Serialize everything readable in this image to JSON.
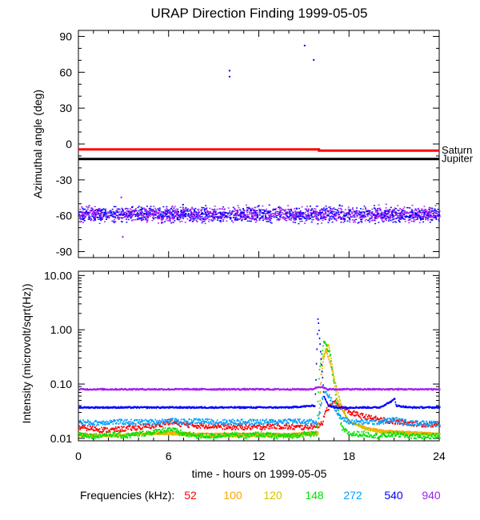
{
  "title": "URAP Direction Finding  1999-05-05",
  "xlabel": "time - hours on 1999-05-05",
  "legend_label": "Frequencies (kHz):",
  "chart_data": [
    {
      "type": "scatter",
      "title": "URAP Direction Finding  1999-05-05",
      "ylabel": "Azimuthal angle (deg)",
      "xlim": [
        0,
        24
      ],
      "ylim": [
        -95,
        95
      ],
      "x_ticks": [
        0,
        6,
        12,
        18,
        24
      ],
      "y_ticks": [
        -90,
        -60,
        -30,
        0,
        30,
        60,
        90
      ],
      "reference_lines": [
        {
          "name": "Saturn",
          "color": "#ff0000",
          "points": [
            [
              0,
              -4.5
            ],
            [
              16,
              -4.5
            ],
            [
              16,
              -5.5
            ],
            [
              24,
              -5.5
            ]
          ]
        },
        {
          "name": "Jupiter",
          "color": "#000000",
          "points": [
            [
              0,
              -12.5
            ],
            [
              24,
              -12.5
            ]
          ]
        }
      ],
      "scatter_band": {
        "x_range": [
          0,
          24
        ],
        "y_center": -58.5,
        "y_spread": 7,
        "colors": [
          "#0000ff",
          "#a020f0"
        ]
      },
      "outlier_points": [
        {
          "x": 10,
          "y": 62,
          "color": "#0000ff"
        },
        {
          "x": 10,
          "y": 57,
          "color": "#0000ff"
        },
        {
          "x": 15,
          "y": 83,
          "color": "#0000ff"
        },
        {
          "x": 15.6,
          "y": 71,
          "color": "#0000ff"
        },
        {
          "x": 2.9,
          "y": -77,
          "color": "#a020f0"
        },
        {
          "x": 2.8,
          "y": -44,
          "color": "#a020f0"
        }
      ]
    },
    {
      "type": "line",
      "ylabel": "Intensity (microvolt/sqrt(Hz))",
      "xlabel": "time - hours on 1999-05-05",
      "xlim": [
        0,
        24
      ],
      "ylim": [
        0.009,
        12
      ],
      "yscale": "log",
      "x_ticks": [
        0,
        6,
        12,
        18,
        24
      ],
      "y_ticks": [
        0.01,
        0.1,
        1.0,
        10.0
      ],
      "y_tick_labels": [
        "0.01",
        "0.10",
        "1.00",
        "10.00"
      ],
      "series": [
        {
          "name": "52",
          "color": "#ff0000",
          "x": [
            0,
            1,
            2,
            3,
            4,
            5,
            6,
            7,
            8,
            9,
            10,
            11,
            12,
            13,
            14,
            15,
            15.9,
            16.2,
            16.5,
            17,
            18,
            19,
            20,
            21,
            22,
            23,
            24
          ],
          "values": [
            0.016,
            0.015,
            0.014,
            0.015,
            0.016,
            0.017,
            0.02,
            0.018,
            0.017,
            0.017,
            0.016,
            0.016,
            0.016,
            0.017,
            0.016,
            0.016,
            0.017,
            0.02,
            0.035,
            0.045,
            0.03,
            0.025,
            0.022,
            0.02,
            0.019,
            0.018,
            0.018
          ]
        },
        {
          "name": "100",
          "color": "#ffa500",
          "x": [
            0,
            2,
            4,
            6,
            8,
            10,
            12,
            14,
            15.9,
            16.1,
            16.4,
            16.8,
            17.2,
            17.6,
            18,
            19,
            20,
            22,
            24
          ],
          "values": [
            0.012,
            0.011,
            0.012,
            0.013,
            0.012,
            0.012,
            0.012,
            0.012,
            0.013,
            0.15,
            0.45,
            0.2,
            0.05,
            0.03,
            0.02,
            0.016,
            0.014,
            0.013,
            0.012
          ]
        },
        {
          "name": "120",
          "color": "#d4c200",
          "x": [
            0,
            2,
            4,
            6,
            8,
            10,
            12,
            14,
            15.9,
            16.2,
            16.6,
            17.0,
            17.5,
            18,
            19,
            20,
            22,
            24
          ],
          "values": [
            0.011,
            0.011,
            0.012,
            0.012,
            0.011,
            0.011,
            0.011,
            0.011,
            0.012,
            0.3,
            0.55,
            0.12,
            0.035,
            0.02,
            0.015,
            0.013,
            0.012,
            0.012
          ]
        },
        {
          "name": "148",
          "color": "#00e000",
          "x": [
            0,
            1,
            2,
            3,
            4,
            5,
            6,
            7,
            8,
            9,
            10,
            11,
            12,
            13,
            14,
            15,
            15.8,
            16.0,
            16.3,
            16.7,
            17.1,
            17.5,
            18,
            19,
            20,
            21,
            22,
            23,
            24
          ],
          "values": [
            0.012,
            0.011,
            0.012,
            0.011,
            0.012,
            0.013,
            0.015,
            0.012,
            0.011,
            0.011,
            0.012,
            0.011,
            0.012,
            0.011,
            0.011,
            0.012,
            0.012,
            0.2,
            0.6,
            0.35,
            0.05,
            0.015,
            0.012,
            0.012,
            0.011,
            0.012,
            0.011,
            0.011,
            0.011
          ]
        },
        {
          "name": "272",
          "color": "#00a0ff",
          "x": [
            0,
            1,
            2,
            3,
            4,
            5,
            6,
            7,
            8,
            9,
            10,
            11,
            12,
            13,
            14,
            15,
            15.9,
            16.3,
            16.8,
            17.3,
            18,
            19,
            20,
            21,
            22,
            23,
            24
          ],
          "values": [
            0.02,
            0.019,
            0.02,
            0.02,
            0.02,
            0.02,
            0.021,
            0.02,
            0.021,
            0.02,
            0.02,
            0.02,
            0.02,
            0.02,
            0.021,
            0.02,
            0.02,
            0.08,
            0.05,
            0.025,
            0.02,
            0.02,
            0.02,
            0.022,
            0.019,
            0.019,
            0.018
          ]
        },
        {
          "name": "540",
          "color": "#0000ff",
          "x": [
            0,
            2,
            4,
            6,
            8,
            10,
            12,
            14,
            15.7,
            15.9,
            16.1,
            16.3,
            16.6,
            17,
            18,
            20,
            20.9,
            21,
            21.1,
            22,
            24
          ],
          "values": [
            0.037,
            0.037,
            0.037,
            0.037,
            0.037,
            0.037,
            0.037,
            0.037,
            0.04,
            1.7,
            0.3,
            0.06,
            0.04,
            0.037,
            0.037,
            0.037,
            0.05,
            0.055,
            0.04,
            0.037,
            0.037
          ]
        },
        {
          "name": "940",
          "color": "#a020f0",
          "x": [
            0,
            2,
            4,
            6,
            8,
            10,
            12,
            14,
            15.5,
            16,
            16.5,
            18,
            20,
            22,
            24
          ],
          "values": [
            0.08,
            0.08,
            0.08,
            0.08,
            0.08,
            0.08,
            0.08,
            0.08,
            0.08,
            0.09,
            0.08,
            0.08,
            0.08,
            0.08,
            0.08
          ]
        }
      ]
    }
  ]
}
